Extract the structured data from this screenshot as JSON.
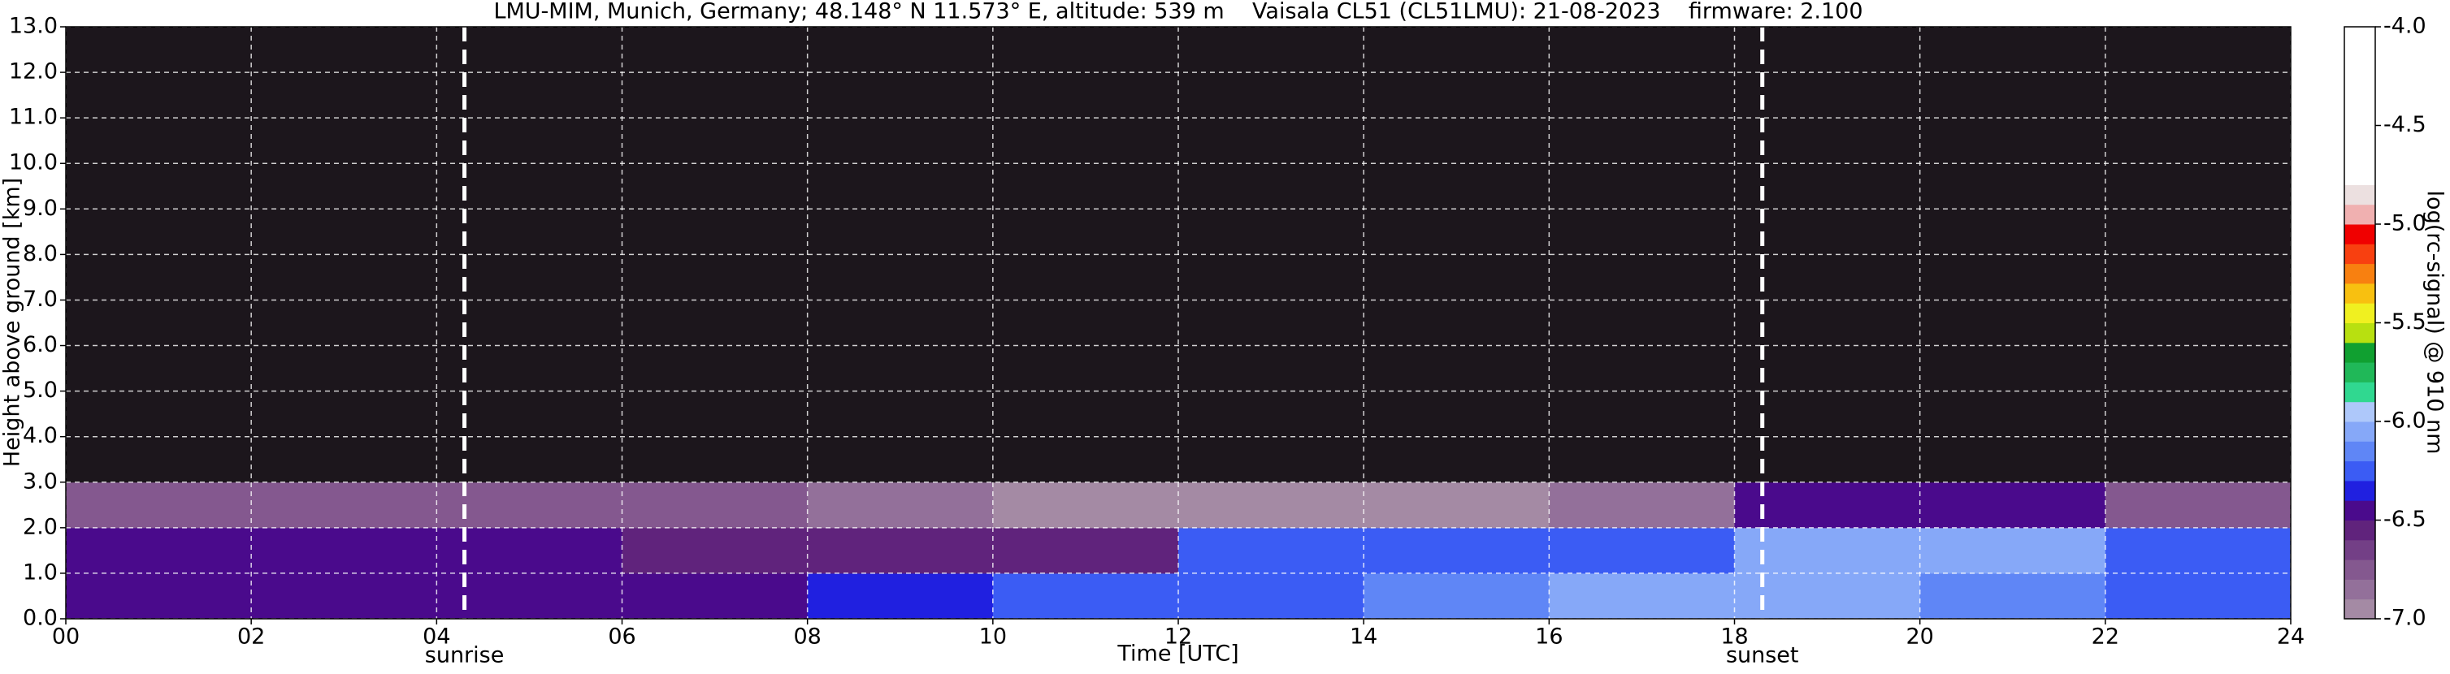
{
  "chart_data": {
    "type": "heatmap",
    "title": "LMU-MIM, Munich, Germany; 48.148° N 11.573° E, altitude: 539 m    Vaisala CL51 (CL51LMU): 21-08-2023    firmware: 2.100",
    "xlabel": "Time [UTC]",
    "ylabel": "Height above ground [km]",
    "colorbar_label": "log(rc-signal) @ 910 nm",
    "xlim": [
      0,
      24
    ],
    "ylim": [
      0,
      13
    ],
    "xticks": [
      {
        "value": 0,
        "label": "00"
      },
      {
        "value": 2,
        "label": "02"
      },
      {
        "value": 4,
        "label": "04"
      },
      {
        "value": 6,
        "label": "06"
      },
      {
        "value": 8,
        "label": "08"
      },
      {
        "value": 10,
        "label": "10"
      },
      {
        "value": 12,
        "label": "12"
      },
      {
        "value": 14,
        "label": "14"
      },
      {
        "value": 16,
        "label": "16"
      },
      {
        "value": 18,
        "label": "18"
      },
      {
        "value": 20,
        "label": "20"
      },
      {
        "value": 22,
        "label": "22"
      },
      {
        "value": 24,
        "label": "24"
      }
    ],
    "yticks": [
      {
        "value": 0,
        "label": "0.0"
      },
      {
        "value": 1,
        "label": "1.0"
      },
      {
        "value": 2,
        "label": "2.0"
      },
      {
        "value": 3,
        "label": "3.0"
      },
      {
        "value": 4,
        "label": "4.0"
      },
      {
        "value": 5,
        "label": "5.0"
      },
      {
        "value": 6,
        "label": "6.0"
      },
      {
        "value": 7,
        "label": "7.0"
      },
      {
        "value": 8,
        "label": "8.0"
      },
      {
        "value": 9,
        "label": "9.0"
      },
      {
        "value": 10,
        "label": "10.0"
      },
      {
        "value": 11,
        "label": "11.0"
      },
      {
        "value": 12,
        "label": "12.0"
      },
      {
        "value": 13,
        "label": "13.0"
      }
    ],
    "clim": [
      -7,
      -4
    ],
    "cticks": [
      {
        "value": -7,
        "label": "-7.0"
      },
      {
        "value": -6.5,
        "label": "-6.5"
      },
      {
        "value": -6,
        "label": "-6.0"
      },
      {
        "value": -5.5,
        "label": "-5.5"
      },
      {
        "value": -5,
        "label": "-5.0"
      },
      {
        "value": -4.5,
        "label": "-4.5"
      },
      {
        "value": -4,
        "label": "-4.0"
      }
    ],
    "colormap": [
      "#a48aa4",
      "#93709a",
      "#84588f",
      "#733f86",
      "#60237c",
      "#4a0a8c",
      "#2020e0",
      "#3b5cf4",
      "#5f86f6",
      "#86a8f8",
      "#aec8fa",
      "#30d890",
      "#20b858",
      "#10a030",
      "#b8e010",
      "#f0f020",
      "#f8c010",
      "#f88010",
      "#f84010",
      "#f00000",
      "#f0b0b0",
      "#ece0e0",
      "#ffffff",
      "#ffffff",
      "#ffffff",
      "#ffffff",
      "#ffffff",
      "#ffffff",
      "#ffffff",
      "#ffffff"
    ],
    "under_color": "#1c161c",
    "grid": true,
    "x_step": 2,
    "y_step": 1,
    "z": [
      [
        -6.45,
        -6.45,
        -6.4,
        -6.4,
        -6.35,
        -6.3,
        -6.2,
        -6.15,
        -6.1,
        -6.1,
        -6.15,
        -6.2
      ],
      [
        -6.5,
        -6.5,
        -6.5,
        -6.55,
        -6.6,
        -6.6,
        -6.3,
        -6.25,
        -6.2,
        -6.05,
        -6.1,
        -6.3
      ],
      [
        -6.7,
        -6.7,
        -6.75,
        -6.8,
        -6.85,
        -6.9,
        -6.9,
        -6.9,
        -6.85,
        -6.4,
        -6.5,
        -6.7
      ],
      [
        -7.2,
        -7.2,
        -7.2,
        -7.2,
        -7.2,
        -7.2,
        -7.2,
        -7.2,
        -7.2,
        -7.2,
        -7.2,
        -7.2
      ],
      [
        -7.2,
        -7.2,
        -7.2,
        -7.2,
        -7.2,
        -7.2,
        -7.2,
        -7.2,
        -7.2,
        -7.2,
        -7.2,
        -7.2
      ],
      [
        -7.2,
        -7.2,
        -7.2,
        -7.2,
        -7.2,
        -7.2,
        -7.2,
        -7.2,
        -7.2,
        -7.2,
        -7.2,
        -7.2
      ],
      [
        -7.2,
        -7.2,
        -7.2,
        -7.2,
        -7.2,
        -7.2,
        -7.2,
        -7.2,
        -7.2,
        -7.2,
        -7.2,
        -7.2
      ],
      [
        -7.2,
        -7.2,
        -7.2,
        -7.2,
        -7.2,
        -7.2,
        -7.2,
        -7.2,
        -7.2,
        -7.2,
        -7.2,
        -7.2
      ],
      [
        -7.2,
        -7.2,
        -7.2,
        -7.2,
        -7.2,
        -7.2,
        -7.2,
        -7.2,
        -7.2,
        -7.2,
        -7.2,
        -7.2
      ],
      [
        -7.2,
        -7.2,
        -7.2,
        -7.2,
        -7.2,
        -7.2,
        -7.2,
        -7.2,
        -7.2,
        -7.2,
        -7.2,
        -7.2
      ],
      [
        -7.2,
        -7.2,
        -7.2,
        -7.2,
        -7.2,
        -7.2,
        -7.2,
        -7.2,
        -7.2,
        -7.2,
        -7.2,
        -7.2
      ],
      [
        -7.2,
        -7.2,
        -7.2,
        -7.2,
        -7.2,
        -7.2,
        -7.2,
        -7.2,
        -7.2,
        -7.2,
        -7.2,
        -7.2
      ],
      [
        -7.2,
        -7.2,
        -7.2,
        -7.2,
        -7.2,
        -7.2,
        -7.2,
        -7.2,
        -7.2,
        -7.2,
        -7.2,
        -7.2
      ]
    ],
    "vlines": [
      {
        "x": 4.3,
        "label": "sunrise"
      },
      {
        "x": 18.3,
        "label": "sunset"
      }
    ]
  }
}
